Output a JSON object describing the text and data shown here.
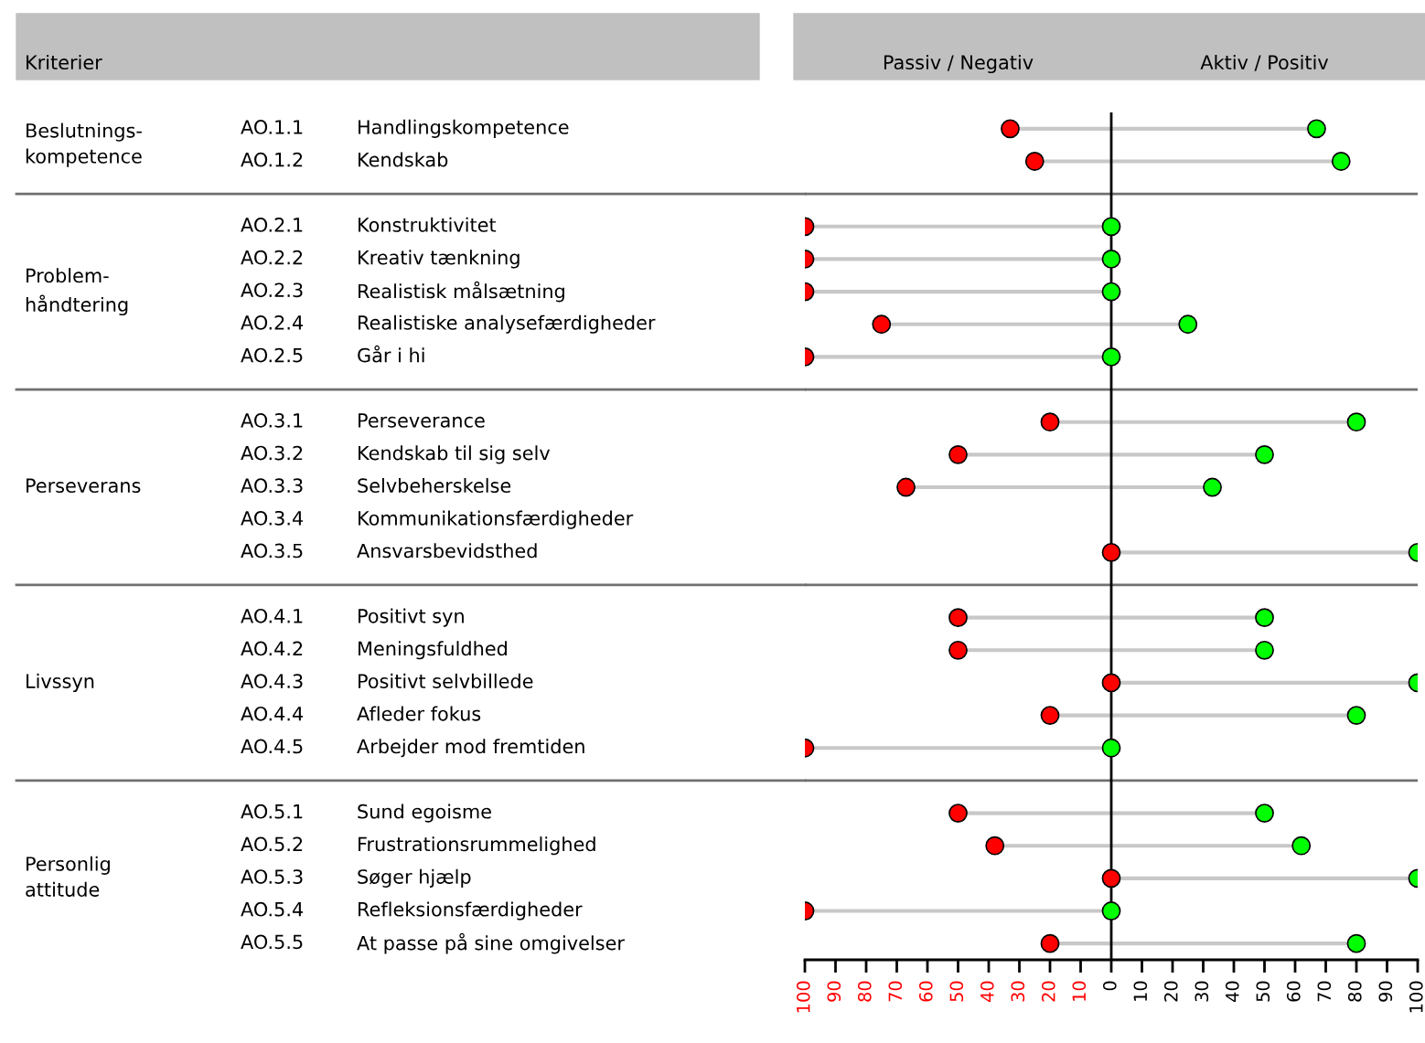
{
  "chart_data": {
    "type": "scatter",
    "orientation": "horizontal",
    "categories": [
      "AO.1.1 Handlingskompetence",
      "AO.1.2 Kendskab",
      null,
      "AO.2.1 Konstruktivitet",
      "AO.2.2 Kreativ tænkning",
      "AO.2.3 Realistisk målsætning",
      "AO.2.4 Realistiske analysefærdigheder",
      "AO.2.5 Går i hi",
      null,
      "AO.3.1 Perseverance",
      "AO.3.2 Kendskab til sig selv",
      "AO.3.3 Selvbeherskelse",
      "AO.3.4 Kommunikationsfærdigheder",
      "AO.3.5 Ansvarsbevidsthed",
      null,
      "AO.4.1 Positivt syn",
      "AO.4.2 Meningsfuldhed",
      "AO.4.3 Positivt selvbillede",
      "AO.4.4 Afleder fokus",
      "AO.4.5 Arbejder mod fremtiden",
      null,
      "AO.5.1 Sund egoisme",
      "AO.5.2 Frustrationsrummelighed",
      "AO.5.3 Søger hjælp",
      "AO.5.4 Refleksionsfærdigheder",
      "AO.5.5 At passe på sine omgivelser"
    ],
    "series": [
      {
        "color": "#ff0000",
        "values": [
          -33,
          -25,
          null,
          -100,
          -100,
          -100,
          -75,
          -100,
          null,
          -20,
          -50,
          -67,
          null,
          0,
          null,
          -50,
          -50,
          0,
          -20,
          -100,
          null,
          -50,
          -38,
          0,
          -100,
          -20
        ]
      },
      {
        "color": "#00ff00",
        "values": [
          67,
          75,
          null,
          0,
          0,
          0,
          25,
          0,
          null,
          80,
          50,
          33,
          null,
          100,
          null,
          50,
          50,
          100,
          80,
          0,
          null,
          50,
          62,
          100,
          0,
          80
        ]
      }
    ],
    "marker": "circle",
    "xlim": [
      -100,
      100
    ],
    "xticks": [
      {
        "value": -100,
        "label": "100"
      },
      {
        "value": -90,
        "label": "90"
      },
      {
        "value": -80,
        "label": "80"
      },
      {
        "value": -70,
        "label": "70"
      },
      {
        "value": -60,
        "label": "60"
      },
      {
        "value": -50,
        "label": "50"
      },
      {
        "value": -40,
        "label": "40"
      },
      {
        "value": -30,
        "label": "30"
      },
      {
        "value": -20,
        "label": "20"
      },
      {
        "value": -10,
        "label": "10"
      },
      0,
      10,
      20,
      30,
      40,
      50,
      60,
      70,
      80,
      90,
      100
    ],
    "ref_lines": [
      {
        "axis": "x",
        "value": 0,
        "color": "#000000"
      }
    ],
    "annotations": [
      "Kriterier",
      "Beslutnings-\nkompetence",
      "Problem-\nhåndtering",
      "Perseverans",
      "Livssyn",
      "Personlig\nattitude",
      "Passiv / Negativ",
      "Aktiv / Positiv"
    ],
    "grid": "y",
    "legend": false
  }
}
